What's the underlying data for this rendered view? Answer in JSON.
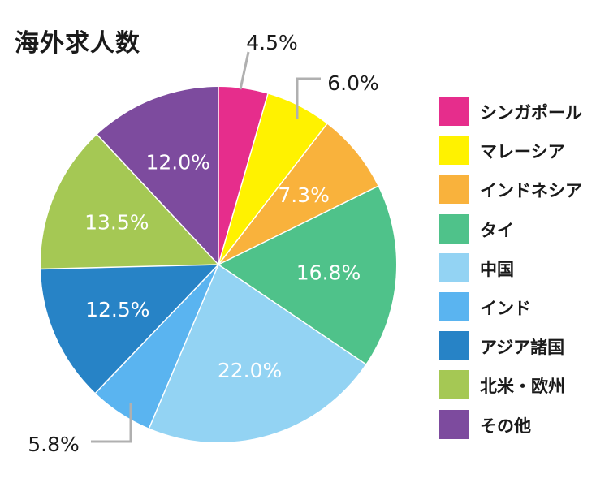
{
  "chart_data": {
    "type": "pie",
    "title": "海外求人数",
    "slices": [
      {
        "label": "シンガポール",
        "value": 4.5,
        "display": "4.5%",
        "color": "#e62d8c",
        "label_inside": false
      },
      {
        "label": "マレーシア",
        "value": 6.0,
        "display": "6.0%",
        "color": "#fff200",
        "label_inside": false
      },
      {
        "label": "インドネシア",
        "value": 7.3,
        "display": "7.3%",
        "color": "#f9b23c",
        "label_inside": true
      },
      {
        "label": "タイ",
        "value": 16.8,
        "display": "16.8%",
        "color": "#4fc28a",
        "label_inside": true
      },
      {
        "label": "中国",
        "value": 22.0,
        "display": "22.0%",
        "color": "#93d3f3",
        "label_inside": true
      },
      {
        "label": "インド",
        "value": 5.8,
        "display": "5.8%",
        "color": "#5ab4f0",
        "label_inside": false
      },
      {
        "label": "アジア諸国",
        "value": 12.5,
        "display": "12.5%",
        "color": "#2783c6",
        "label_inside": true
      },
      {
        "label": "北米・欧州",
        "value": 13.5,
        "display": "13.5%",
        "color": "#a5c854",
        "label_inside": true
      },
      {
        "label": "その他",
        "value": 12.0,
        "display": "12.0%",
        "color": "#7d4b9e",
        "label_inside": true
      }
    ],
    "start": "12 o'clock",
    "direction": "clockwise",
    "legend_position": "right"
  }
}
